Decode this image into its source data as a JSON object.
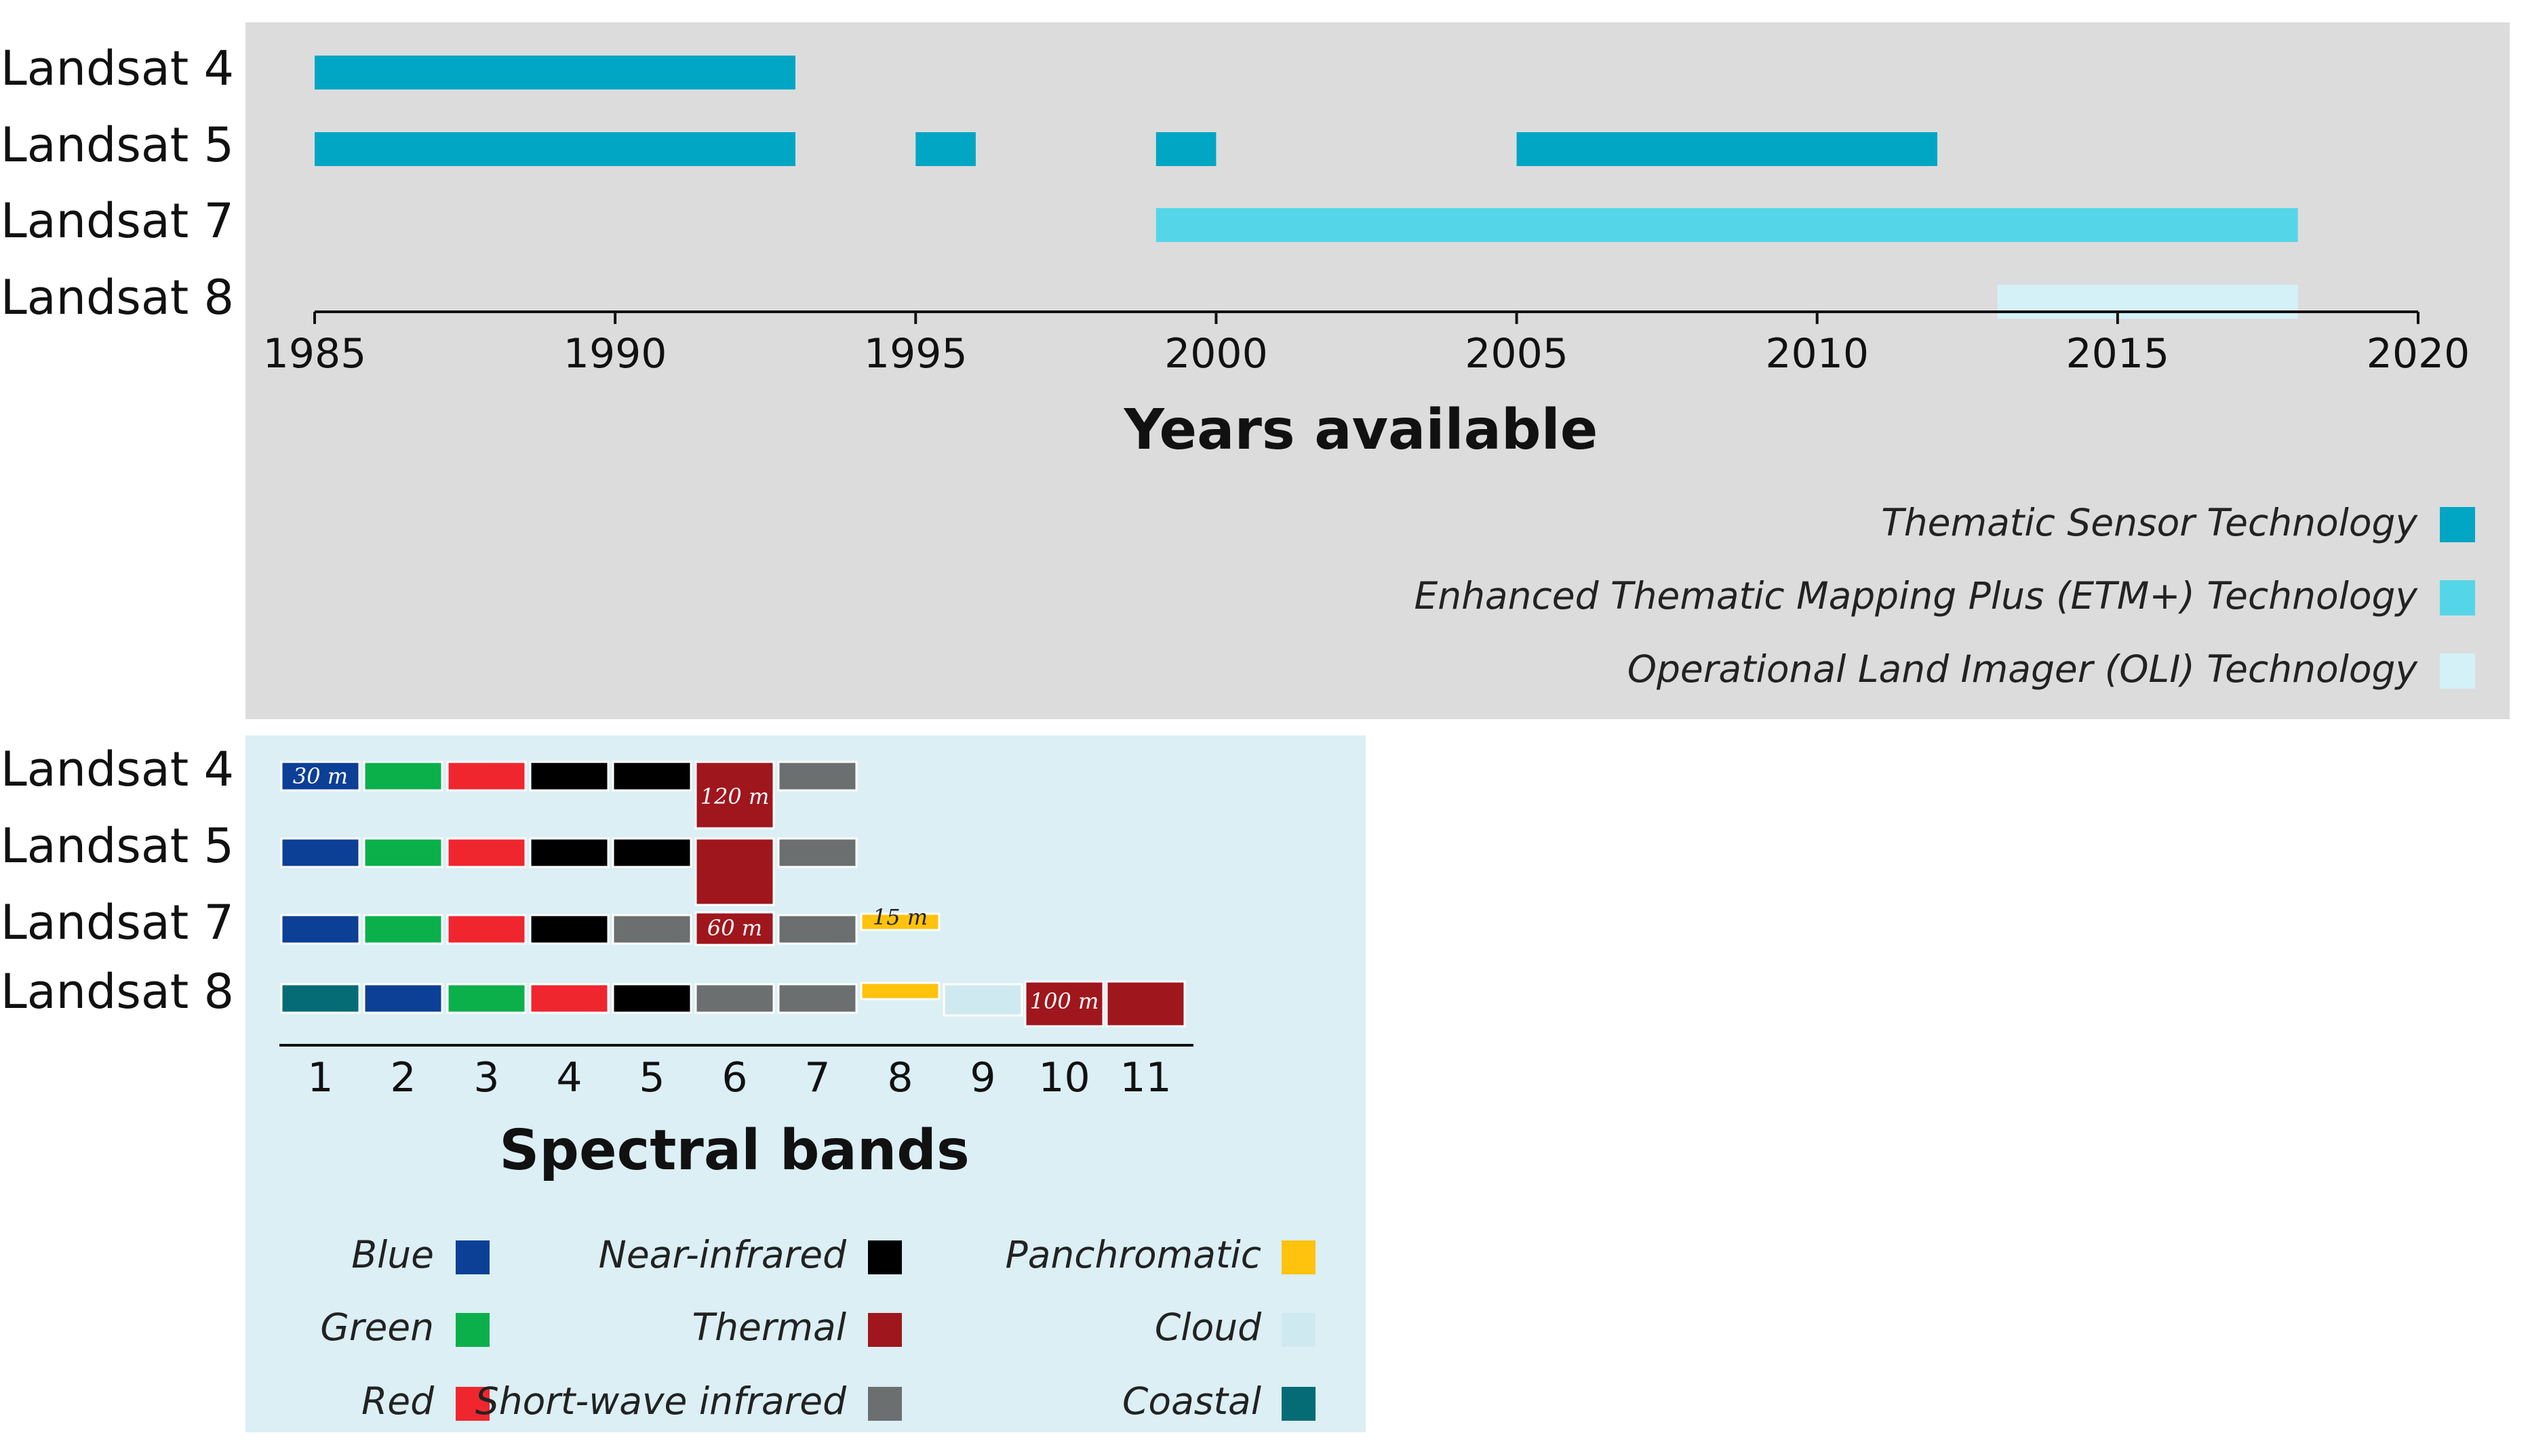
{
  "colors": {
    "panel_top": "#dcdcdc",
    "panel_bottom": "#dbeff5",
    "tm": "#00a6c4",
    "etm": "#55d6e8",
    "oli": "#d4f1f7"
  },
  "chart_data": [
    {
      "type": "timeline",
      "title": "",
      "xlabel": "Years available",
      "xlim": [
        1985,
        2020
      ],
      "xticks": [
        "1985",
        "1990",
        "1995",
        "2000",
        "2005",
        "2010",
        "2015",
        "2020"
      ],
      "satellites": [
        "Landsat 4",
        "Landsat 5",
        "Landsat 7",
        "Landsat 8"
      ],
      "series": [
        {
          "satellite": "Landsat 4",
          "tech": "tm",
          "periods": [
            [
              1985,
              1993
            ]
          ]
        },
        {
          "satellite": "Landsat 5",
          "tech": "tm",
          "periods": [
            [
              1985,
              1993
            ],
            [
              1995,
              1996
            ],
            [
              1999,
              2000
            ],
            [
              2005,
              2012
            ]
          ]
        },
        {
          "satellite": "Landsat 7",
          "tech": "etm",
          "periods": [
            [
              1999,
              2018
            ]
          ]
        },
        {
          "satellite": "Landsat 8",
          "tech": "oli",
          "periods": [
            [
              2013,
              2018
            ]
          ]
        }
      ],
      "legend": [
        {
          "key": "tm",
          "label": "Thematic Sensor Technology"
        },
        {
          "key": "etm",
          "label": "Enhanced Thematic Mapping Plus (ETM+) Technology"
        },
        {
          "key": "oli",
          "label": "Operational Land Imager (OLI) Technology"
        }
      ]
    },
    {
      "type": "band-matrix",
      "xlabel": "Spectral bands",
      "bands": [
        "1",
        "2",
        "3",
        "4",
        "5",
        "6",
        "7",
        "8",
        "9",
        "10",
        "11"
      ],
      "satellites": [
        "Landsat 4",
        "Landsat 5",
        "Landsat 7",
        "Landsat 8"
      ],
      "rows": [
        {
          "satellite": "Landsat 4",
          "cells": [
            "blue",
            "green",
            "red",
            "nir",
            "nir",
            "thermal",
            "swir"
          ]
        },
        {
          "satellite": "Landsat 5",
          "cells": [
            "blue",
            "green",
            "red",
            "nir",
            "nir",
            "thermal",
            "swir"
          ]
        },
        {
          "satellite": "Landsat 7",
          "cells": [
            "blue",
            "green",
            "red",
            "nir",
            "swir",
            "thermal",
            "swir",
            "pan"
          ]
        },
        {
          "satellite": "Landsat 8",
          "cells": [
            "coastal",
            "blue",
            "green",
            "red",
            "nir",
            "swir",
            "swir",
            "pan",
            "cloud",
            "thermal",
            "thermal"
          ]
        }
      ],
      "resolution_labels": [
        {
          "text": "30 m",
          "satellite": "Landsat 4",
          "band": "1"
        },
        {
          "text": "120 m",
          "satellite": "Landsat 4",
          "band": "6"
        },
        {
          "text": "60 m",
          "satellite": "Landsat 7",
          "band": "6"
        },
        {
          "text": "15 m",
          "satellite": "Landsat 7",
          "band": "8"
        },
        {
          "text": "100 m",
          "satellite": "Landsat 8",
          "band": "10"
        }
      ],
      "legend": [
        {
          "key": "blue",
          "label": "Blue",
          "color": "#0c3f96"
        },
        {
          "key": "green",
          "label": "Green",
          "color": "#0bb04b"
        },
        {
          "key": "red",
          "label": "Red",
          "color": "#f0262f"
        },
        {
          "key": "nir",
          "label": "Near-infrared",
          "color": "#000000"
        },
        {
          "key": "thermal",
          "label": "Thermal",
          "color": "#a0161d"
        },
        {
          "key": "swir",
          "label": "Short-wave infrared",
          "color": "#6b6f70"
        },
        {
          "key": "pan",
          "label": "Panchromatic",
          "color": "#ffc20d"
        },
        {
          "key": "cloud",
          "label": "Cloud",
          "color": "#cfe9f1"
        },
        {
          "key": "coastal",
          "label": "Coastal",
          "color": "#056b74"
        }
      ]
    }
  ]
}
